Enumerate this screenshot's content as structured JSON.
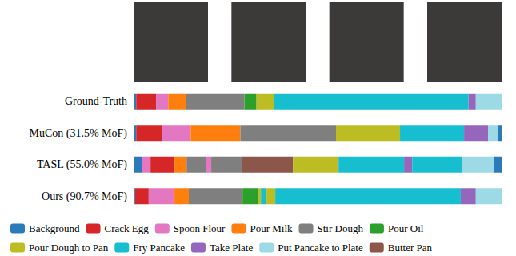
{
  "chart_data": {
    "type": "bar",
    "orientation": "horizontal",
    "stacked": true,
    "tick_labels": "y",
    "legend": "bottom",
    "xlim": [
      0,
      100
    ],
    "categories": [
      "Ground-Truth",
      "MuCon (31.5% MoF)",
      "TASL (55.0% MoF)",
      "Ours (90.7% MoF)"
    ],
    "classes": [
      {
        "name": "Background",
        "color": "#2b7bba"
      },
      {
        "name": "Crack Egg",
        "color": "#d62728"
      },
      {
        "name": "Spoon Flour",
        "color": "#e377c2"
      },
      {
        "name": "Pour Milk",
        "color": "#ff7f0e"
      },
      {
        "name": "Stir Dough",
        "color": "#7f7f7f"
      },
      {
        "name": "Pour Oil",
        "color": "#2ca02c"
      },
      {
        "name": "Pour Dough to Pan",
        "color": "#bcbd22"
      },
      {
        "name": "Fry Pancake",
        "color": "#17becf"
      },
      {
        "name": "Take Plate",
        "color": "#9467bd"
      },
      {
        "name": "Put Pancake to Plate",
        "color": "#9edae5"
      },
      {
        "name": "Butter Pan",
        "color": "#8c564b"
      }
    ],
    "sequences": [
      [
        {
          "class": "Background",
          "value": 0.7
        },
        {
          "class": "Crack Egg",
          "value": 5.4
        },
        {
          "class": "Spoon Flour",
          "value": 3.3
        },
        {
          "class": "Pour Milk",
          "value": 4.8
        },
        {
          "class": "Stir Dough",
          "value": 15.9
        },
        {
          "class": "Pour Oil",
          "value": 3.3
        },
        {
          "class": "Pour Dough to Pan",
          "value": 4.8
        },
        {
          "class": "Fry Pancake",
          "value": 52.8
        },
        {
          "class": "Take Plate",
          "value": 2.0
        },
        {
          "class": "Put Pancake to Plate",
          "value": 7.0
        }
      ],
      [
        {
          "class": "Background",
          "value": 0.7
        },
        {
          "class": "Crack Egg",
          "value": 7.0
        },
        {
          "class": "Spoon Flour",
          "value": 7.8
        },
        {
          "class": "Pour Milk",
          "value": 13.5
        },
        {
          "class": "Stir Dough",
          "value": 26.0
        },
        {
          "class": "Pour Dough to Pan",
          "value": 17.4
        },
        {
          "class": "Fry Pancake",
          "value": 17.4
        },
        {
          "class": "Take Plate",
          "value": 6.5
        },
        {
          "class": "Put Pancake to Plate",
          "value": 2.6
        },
        {
          "class": "Background",
          "value": 1.1
        }
      ],
      [
        {
          "class": "Background",
          "value": 2.2
        },
        {
          "class": "Spoon Flour",
          "value": 2.4
        },
        {
          "class": "Crack Egg",
          "value": 6.5
        },
        {
          "class": "Pour Milk",
          "value": 3.3
        },
        {
          "class": "Stir Dough",
          "value": 5.2
        },
        {
          "class": "Spoon Flour",
          "value": 1.5
        },
        {
          "class": "Stir Dough",
          "value": 8.3
        },
        {
          "class": "Butter Pan",
          "value": 13.9
        },
        {
          "class": "Pour Dough to Pan",
          "value": 12.4
        },
        {
          "class": "Fry Pancake",
          "value": 17.8
        },
        {
          "class": "Take Plate",
          "value": 2.2
        },
        {
          "class": "Fry Pancake",
          "value": 13.6
        },
        {
          "class": "Put Pancake to Plate",
          "value": 8.7
        },
        {
          "class": "Background",
          "value": 2.0
        }
      ],
      [
        {
          "class": "Background",
          "value": 0.4
        },
        {
          "class": "Crack Egg",
          "value": 3.7
        },
        {
          "class": "Spoon Flour",
          "value": 7.0
        },
        {
          "class": "Pour Milk",
          "value": 3.9
        },
        {
          "class": "Stir Dough",
          "value": 14.6
        },
        {
          "class": "Pour Oil",
          "value": 4.1
        },
        {
          "class": "Pour Dough to Pan",
          "value": 0.9
        },
        {
          "class": "Fry Pancake",
          "value": 1.5
        },
        {
          "class": "Pour Dough to Pan",
          "value": 2.4
        },
        {
          "class": "Fry Pancake",
          "value": 50.4
        },
        {
          "class": "Take Plate",
          "value": 4.1
        },
        {
          "class": "Put Pancake to Plate",
          "value": 7.0
        }
      ]
    ]
  }
}
